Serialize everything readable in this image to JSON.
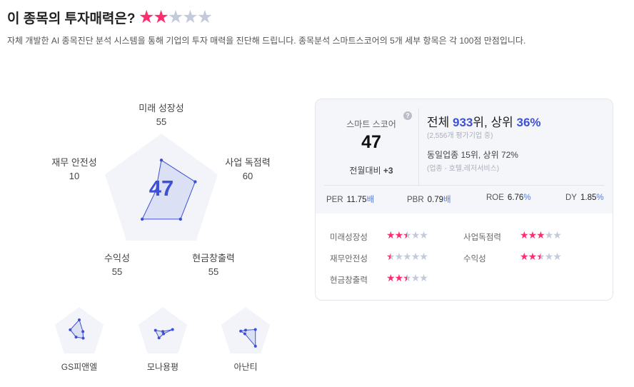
{
  "header": {
    "title": "이 종목의 투자매력은?",
    "rating_stars": 2,
    "rating_max": 5,
    "description": "자체 개발한 AI 종목진단 분석 시스템을 통해 기업의 투자 매력을 진단해 드립니다. 종목분석 스마트스코어의 5개 세부 항목은 각 100점 만점입니다."
  },
  "colors": {
    "accent": "#3d50d6",
    "star_on": "#ff2d6f",
    "star_off": "#c3cad9",
    "radar_bg": "#f3f4fa"
  },
  "radar": {
    "score": "47",
    "axes": [
      {
        "label": "미래 성장성",
        "value": 55
      },
      {
        "label": "사업 독점력",
        "value": 60
      },
      {
        "label": "현금창출력",
        "value": 55
      },
      {
        "label": "수익성",
        "value": 55
      },
      {
        "label": "재무 안전성",
        "value": 10
      }
    ],
    "value_labels": [
      "55",
      "60",
      "55",
      "55",
      "10"
    ]
  },
  "summary": {
    "smart_score_label": "스마트 스코어",
    "help_icon": "question-circle-icon",
    "smart_score": "47",
    "monthly_change_label": "전월대비",
    "monthly_change": "+3",
    "overall_prefix": "전체",
    "overall_rank": "933",
    "overall_mid": "위, 상위",
    "overall_percent": "36%",
    "overall_note": "(2,556개 평가기업 중)",
    "industry_rank": "동일업종 15위, 상위 72%",
    "industry_note": "(업종 - 호텔,레저서비스)",
    "metrics": [
      {
        "label": "PER",
        "value": "11.75",
        "unit": "배"
      },
      {
        "label": "PBR",
        "value": "0.79",
        "unit": "배"
      },
      {
        "label": "ROE",
        "value": "6.76",
        "unit": "%"
      },
      {
        "label": "DY",
        "value": "1.85",
        "unit": "%"
      }
    ],
    "star_rows": [
      {
        "label": "미래성장성",
        "stars": 2.5
      },
      {
        "label": "사업독점력",
        "stars": 3
      },
      {
        "label": "재무안전성",
        "stars": 0.5
      },
      {
        "label": "수익성",
        "stars": 2.5
      },
      {
        "label": "현금창출력",
        "stars": 2.5
      }
    ]
  },
  "peers": [
    {
      "name": "GS피앤엘",
      "values": [
        50,
        15,
        26,
        21,
        37
      ]
    },
    {
      "name": "모나용평",
      "values": [
        5,
        40,
        5,
        25,
        30
      ]
    },
    {
      "name": "아난티",
      "values": [
        10,
        40,
        65,
        5,
        20
      ]
    }
  ]
}
